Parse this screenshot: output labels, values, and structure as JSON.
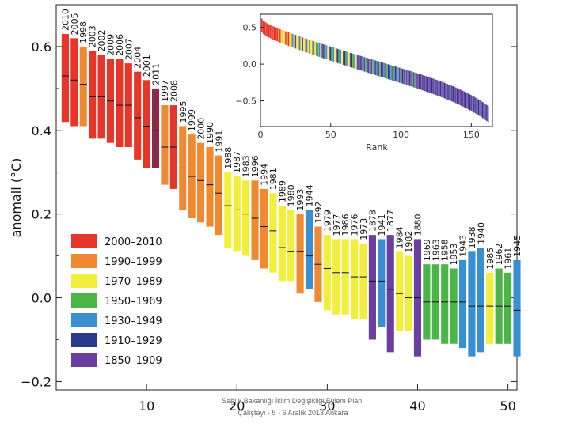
{
  "chart_data": {
    "type": "bar",
    "subtype": "floating-range",
    "ylabel": "anomali  (°C)",
    "ylim": [
      -0.22,
      0.7
    ],
    "xlim": [
      0,
      51
    ],
    "yticks": [
      "0.6",
      "0.4",
      "0.2",
      "0.0",
      "−0.2"
    ],
    "ytick_values": [
      0.6,
      0.4,
      0.2,
      0.0,
      -0.2
    ],
    "xticks": [
      "10",
      "20",
      "30",
      "40",
      "50"
    ],
    "xtick_values": [
      10,
      20,
      30,
      40,
      50
    ],
    "colors": {
      "2000-2010": "#e8352a",
      "1990-1999": "#f08a32",
      "1970-1989": "#f2ef3c",
      "1950-1969": "#4cb548",
      "1930-1949": "#3a8fd0",
      "1910-1929": "#2a3a8c",
      "1850-1909": "#6a3fa0",
      "1850-1909-dark": "#8a2a4a"
    },
    "legend": {
      "position": "bottom-left",
      "entries": [
        {
          "label": "2000–2010",
          "color": "#e8352a"
        },
        {
          "label": "1990–1999",
          "color": "#f08a32"
        },
        {
          "label": "1970–1989",
          "color": "#f2ef3c"
        },
        {
          "label": "1950–1969",
          "color": "#4cb548"
        },
        {
          "label": "1930–1949",
          "color": "#3a8fd0"
        },
        {
          "label": "1910–1929",
          "color": "#2a3a8c"
        },
        {
          "label": "1850–1909",
          "color": "#6a3fa0"
        }
      ]
    },
    "bars": [
      {
        "year": "2010",
        "value": 0.53,
        "low": 0.42,
        "high": 0.63,
        "color": "#e8352a"
      },
      {
        "year": "2005",
        "value": 0.52,
        "low": 0.41,
        "high": 0.62,
        "color": "#e8352a"
      },
      {
        "year": "1998",
        "value": 0.51,
        "low": 0.41,
        "high": 0.6,
        "color": "#f08a32"
      },
      {
        "year": "2003",
        "value": 0.48,
        "low": 0.38,
        "high": 0.59,
        "color": "#e8352a"
      },
      {
        "year": "2002",
        "value": 0.48,
        "low": 0.38,
        "high": 0.58,
        "color": "#e8352a"
      },
      {
        "year": "2009",
        "value": 0.47,
        "low": 0.37,
        "high": 0.57,
        "color": "#e8352a"
      },
      {
        "year": "2006",
        "value": 0.46,
        "low": 0.36,
        "high": 0.57,
        "color": "#e8352a"
      },
      {
        "year": "2007",
        "value": 0.46,
        "low": 0.36,
        "high": 0.56,
        "color": "#e8352a"
      },
      {
        "year": "2004",
        "value": 0.43,
        "low": 0.33,
        "high": 0.54,
        "color": "#e8352a"
      },
      {
        "year": "2001",
        "value": 0.41,
        "low": 0.31,
        "high": 0.52,
        "color": "#e8352a"
      },
      {
        "year": "2011",
        "value": 0.4,
        "low": 0.31,
        "high": 0.5,
        "color": "#8a2a4a"
      },
      {
        "year": "1997",
        "value": 0.36,
        "low": 0.27,
        "high": 0.46,
        "color": "#f08a32"
      },
      {
        "year": "2008",
        "value": 0.36,
        "low": 0.26,
        "high": 0.46,
        "color": "#e8352a"
      },
      {
        "year": "1995",
        "value": 0.31,
        "low": 0.21,
        "high": 0.41,
        "color": "#f08a32"
      },
      {
        "year": "1999",
        "value": 0.29,
        "low": 0.19,
        "high": 0.39,
        "color": "#f08a32"
      },
      {
        "year": "2000",
        "value": 0.28,
        "low": 0.18,
        "high": 0.37,
        "color": "#f08a32"
      },
      {
        "year": "1990",
        "value": 0.27,
        "low": 0.17,
        "high": 0.36,
        "color": "#f08a32"
      },
      {
        "year": "1991",
        "value": 0.25,
        "low": 0.15,
        "high": 0.34,
        "color": "#f08a32"
      },
      {
        "year": "1988",
        "value": 0.22,
        "low": 0.12,
        "high": 0.3,
        "color": "#f2ef3c"
      },
      {
        "year": "1987",
        "value": 0.21,
        "low": 0.11,
        "high": 0.29,
        "color": "#f2ef3c"
      },
      {
        "year": "1983",
        "value": 0.2,
        "low": 0.1,
        "high": 0.28,
        "color": "#f2ef3c"
      },
      {
        "year": "1996",
        "value": 0.19,
        "low": 0.09,
        "high": 0.28,
        "color": "#f08a32"
      },
      {
        "year": "1994",
        "value": 0.17,
        "low": 0.07,
        "high": 0.26,
        "color": "#f08a32"
      },
      {
        "year": "1981",
        "value": 0.16,
        "low": 0.06,
        "high": 0.25,
        "color": "#f2ef3c"
      },
      {
        "year": "1989",
        "value": 0.12,
        "low": 0.04,
        "high": 0.22,
        "color": "#f2ef3c"
      },
      {
        "year": "1980",
        "value": 0.11,
        "low": 0.04,
        "high": 0.21,
        "color": "#f2ef3c"
      },
      {
        "year": "1993",
        "value": 0.11,
        "low": 0.01,
        "high": 0.2,
        "color": "#f08a32"
      },
      {
        "year": "1944",
        "value": 0.1,
        "low": 0.02,
        "high": 0.21,
        "color": "#3a8fd0"
      },
      {
        "year": "1992",
        "value": 0.08,
        "low": -0.01,
        "high": 0.17,
        "color": "#f08a32"
      },
      {
        "year": "1979",
        "value": 0.07,
        "low": -0.03,
        "high": 0.15,
        "color": "#f2ef3c"
      },
      {
        "year": "1977",
        "value": 0.06,
        "low": -0.04,
        "high": 0.14,
        "color": "#f2ef3c"
      },
      {
        "year": "1986",
        "value": 0.06,
        "low": -0.04,
        "high": 0.14,
        "color": "#f2ef3c"
      },
      {
        "year": "1976",
        "value": 0.05,
        "low": -0.05,
        "high": 0.14,
        "color": "#f2ef3c"
      },
      {
        "year": "1973",
        "value": 0.05,
        "low": -0.05,
        "high": 0.13,
        "color": "#f2ef3c"
      },
      {
        "year": "1878",
        "value": 0.04,
        "low": -0.1,
        "high": 0.15,
        "color": "#6a3fa0"
      },
      {
        "year": "1941",
        "value": 0.04,
        "low": -0.07,
        "high": 0.14,
        "color": "#3a8fd0"
      },
      {
        "year": "1877",
        "value": 0.02,
        "low": -0.13,
        "high": 0.15,
        "color": "#6a3fa0"
      },
      {
        "year": "1984",
        "value": 0.01,
        "low": -0.08,
        "high": 0.11,
        "color": "#f2ef3c"
      },
      {
        "year": "1982",
        "value": 0.0,
        "low": -0.08,
        "high": 0.1,
        "color": "#f2ef3c"
      },
      {
        "year": "1880",
        "value": 0.0,
        "low": -0.14,
        "high": 0.14,
        "color": "#6a3fa0"
      },
      {
        "year": "1969",
        "value": -0.01,
        "low": -0.1,
        "high": 0.08,
        "color": "#4cb548"
      },
      {
        "year": "1963",
        "value": -0.01,
        "low": -0.1,
        "high": 0.08,
        "color": "#4cb548"
      },
      {
        "year": "1958",
        "value": -0.01,
        "low": -0.11,
        "high": 0.08,
        "color": "#4cb548"
      },
      {
        "year": "1953",
        "value": -0.01,
        "low": -0.11,
        "high": 0.07,
        "color": "#4cb548"
      },
      {
        "year": "1943",
        "value": -0.01,
        "low": -0.12,
        "high": 0.09,
        "color": "#3a8fd0"
      },
      {
        "year": "1938",
        "value": -0.02,
        "low": -0.14,
        "high": 0.11,
        "color": "#3a8fd0"
      },
      {
        "year": "1940",
        "value": -0.02,
        "low": -0.13,
        "high": 0.12,
        "color": "#3a8fd0"
      },
      {
        "year": "1985",
        "value": -0.02,
        "low": -0.11,
        "high": 0.06,
        "color": "#f2ef3c"
      },
      {
        "year": "1962",
        "value": -0.02,
        "low": -0.11,
        "high": 0.07,
        "color": "#4cb548"
      },
      {
        "year": "1961",
        "value": -0.02,
        "low": -0.11,
        "high": 0.06,
        "color": "#4cb548"
      },
      {
        "year": "1945",
        "value": -0.03,
        "low": -0.14,
        "high": 0.09,
        "color": "#3a8fd0"
      }
    ],
    "inset": {
      "type": "ranked-anomaly",
      "xlabel": "Rank",
      "xlim": [
        0,
        165
      ],
      "ylim": [
        -0.85,
        0.68
      ],
      "xticks": [
        "0",
        "50",
        "100",
        "150"
      ],
      "xtick_values": [
        0,
        50,
        100,
        150
      ],
      "yticks": [
        "0.5",
        "0.0",
        "−0.5"
      ],
      "ytick_values": [
        0.5,
        0.0,
        -0.5
      ],
      "n": 162,
      "start_value": 0.53,
      "end_value": -0.68
    }
  },
  "footer": {
    "line1": "Sağlık Bakanlığı İklim Değişikliği Eylem Planı",
    "line2": "Çalıştayı - 5 - 6 Aralık 2013 Ankara"
  }
}
